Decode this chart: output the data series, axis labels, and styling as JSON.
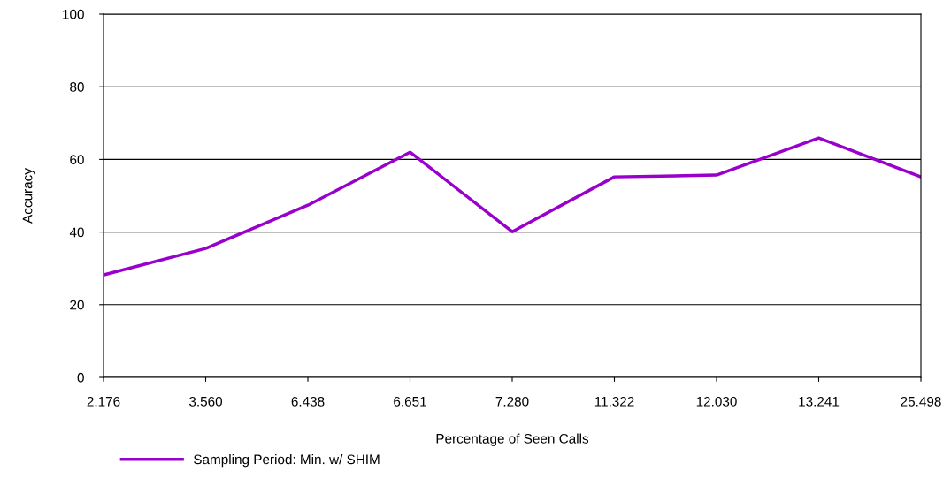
{
  "chart_data": {
    "type": "line",
    "xlabel": "Percentage of Seen Calls",
    "ylabel": "Accuracy",
    "categories": [
      "2.176",
      "3.560",
      "6.438",
      "6.651",
      "7.280",
      "11.322",
      "12.030",
      "13.241",
      "25.498"
    ],
    "series": [
      {
        "name": "Sampling Period: Min. w/ SHIM",
        "color": "#9900cc",
        "values": [
          28.2,
          35.5,
          47.4,
          62.0,
          40.1,
          55.2,
          55.7,
          65.9,
          55.2
        ]
      }
    ],
    "ylim": [
      0,
      100
    ],
    "yticks": [
      0,
      20,
      40,
      60,
      80,
      100
    ],
    "grid": "y",
    "legend": "bottom left",
    "marker": "none",
    "line_style": "solid"
  }
}
